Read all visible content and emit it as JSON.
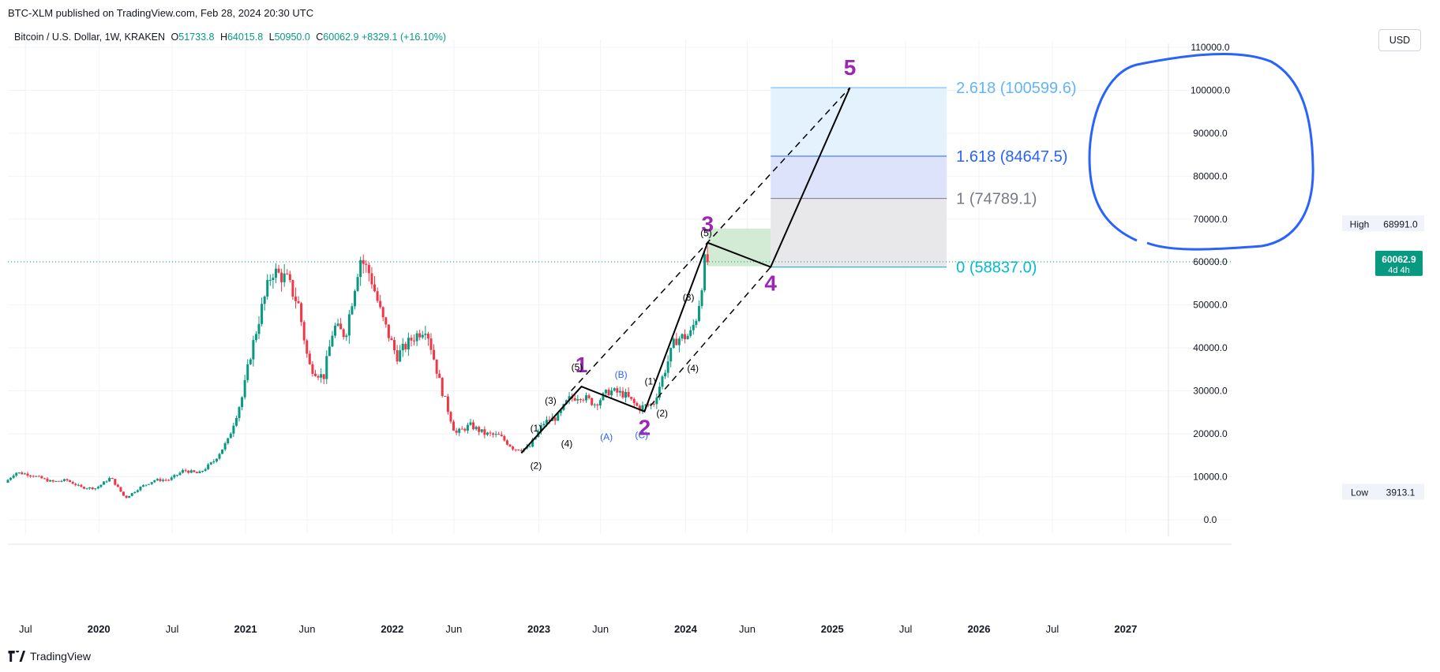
{
  "header": {
    "published": "BTC-XLM published on TradingView.com, Feb 28, 2024 20:30 UTC",
    "symbol": "Bitcoin / U.S. Dollar, 1W, KRAKEN",
    "o_label": "O",
    "o": "51733.8",
    "h_label": "H",
    "h": "64015.8",
    "l_label": "L",
    "l": "50950.0",
    "c_label": "C",
    "c": "60062.9",
    "change": "+8329.1 (+16.10%)",
    "currency": "USD"
  },
  "footer": {
    "brand": "TradingView"
  },
  "colors": {
    "up": "#089981",
    "down": "#f23645",
    "wave": "#9c27b0",
    "fib_2618": "#64b5f6",
    "fib_1618": "#2962ff",
    "fib_1": "#787b86",
    "fib_0": "#00bcd4",
    "circle": "#2962ff"
  },
  "chart_data": {
    "type": "candlestick",
    "symbol": "Bitcoin / U.S. Dollar",
    "interval": "1W",
    "exchange": "KRAKEN",
    "y_ticks": [
      "110000.0",
      "100000.0",
      "90000.0",
      "80000.0",
      "70000.0",
      "60000.0",
      "50000.0",
      "40000.0",
      "30000.0",
      "20000.0",
      "10000.0",
      "0.0"
    ],
    "y_tick_values": [
      110000,
      100000,
      90000,
      80000,
      70000,
      60000,
      50000,
      40000,
      30000,
      20000,
      10000,
      0
    ],
    "ylim": [
      -1500,
      110000
    ],
    "x_ticks": [
      {
        "label": "Jul",
        "t": 2019.5
      },
      {
        "label": "2020",
        "t": 2020.0
      },
      {
        "label": "Jul",
        "t": 2020.5
      },
      {
        "label": "2021",
        "t": 2021.0
      },
      {
        "label": "Jun",
        "t": 2021.42
      },
      {
        "label": "2022",
        "t": 2022.0
      },
      {
        "label": "Jun",
        "t": 2022.42
      },
      {
        "label": "2023",
        "t": 2023.0
      },
      {
        "label": "Jun",
        "t": 2023.42
      },
      {
        "label": "2024",
        "t": 2024.0
      },
      {
        "label": "Jun",
        "t": 2024.42
      },
      {
        "label": "2025",
        "t": 2025.0
      },
      {
        "label": "Jul",
        "t": 2025.5
      },
      {
        "label": "2026",
        "t": 2026.0
      },
      {
        "label": "Jul",
        "t": 2026.5
      },
      {
        "label": "2027",
        "t": 2027.0
      }
    ],
    "xlim": [
      2019.38,
      2027.2
    ],
    "price_path": [
      [
        2019.38,
        8600
      ],
      [
        2019.45,
        11000
      ],
      [
        2019.55,
        10500
      ],
      [
        2019.7,
        8800
      ],
      [
        2019.8,
        9200
      ],
      [
        2019.9,
        7500
      ],
      [
        2020.0,
        7300
      ],
      [
        2020.1,
        9800
      ],
      [
        2020.2,
        5000
      ],
      [
        2020.3,
        7500
      ],
      [
        2020.4,
        9200
      ],
      [
        2020.5,
        9300
      ],
      [
        2020.6,
        11500
      ],
      [
        2020.7,
        10700
      ],
      [
        2020.8,
        13500
      ],
      [
        2020.9,
        18500
      ],
      [
        2021.0,
        29000
      ],
      [
        2021.05,
        38000
      ],
      [
        2021.12,
        48000
      ],
      [
        2021.2,
        58000
      ],
      [
        2021.3,
        56000
      ],
      [
        2021.38,
        50000
      ],
      [
        2021.45,
        36000
      ],
      [
        2021.55,
        33000
      ],
      [
        2021.62,
        45000
      ],
      [
        2021.7,
        43000
      ],
      [
        2021.8,
        61000
      ],
      [
        2021.87,
        57000
      ],
      [
        2021.95,
        47000
      ],
      [
        2022.05,
        38000
      ],
      [
        2022.15,
        42000
      ],
      [
        2022.25,
        45000
      ],
      [
        2022.35,
        31000
      ],
      [
        2022.45,
        20000
      ],
      [
        2022.55,
        22000
      ],
      [
        2022.65,
        20000
      ],
      [
        2022.75,
        19500
      ],
      [
        2022.85,
        16500
      ],
      [
        2022.95,
        16600
      ],
      [
        2023.05,
        22500
      ],
      [
        2023.15,
        24000
      ],
      [
        2023.22,
        28000
      ],
      [
        2023.3,
        29000
      ],
      [
        2023.4,
        27000
      ],
      [
        2023.5,
        30000
      ],
      [
        2023.6,
        29200
      ],
      [
        2023.7,
        26000
      ],
      [
        2023.8,
        27000
      ],
      [
        2023.88,
        35000
      ],
      [
        2023.95,
        42000
      ],
      [
        2024.05,
        43000
      ],
      [
        2024.1,
        48000
      ],
      [
        2024.15,
        60062.9
      ]
    ],
    "current_price": {
      "value": 60062.9,
      "label": "60062.9",
      "sub": "4d 4h"
    },
    "high_marker": {
      "label": "High",
      "value": 68991.0,
      "text": "68991.0"
    },
    "low_marker": {
      "label": "Low",
      "value": 3913.1,
      "text": "3913.1"
    },
    "fib_levels": [
      {
        "ratio": "2.618",
        "value": 100599.6,
        "label": "2.618 (100599.6)"
      },
      {
        "ratio": "1.618",
        "value": 84647.5,
        "label": "1.618 (84647.5)"
      },
      {
        "ratio": "1",
        "value": 74789.1,
        "label": "1 (74789.1)"
      },
      {
        "ratio": "0",
        "value": 58837.0,
        "label": "0 (58837.0)"
      }
    ],
    "major_waves": [
      {
        "label": "1",
        "t": 2023.29,
        "y": 31000
      },
      {
        "label": "2",
        "t": 2023.72,
        "y": 25200
      },
      {
        "label": "3",
        "t": 2024.15,
        "y": 64500
      },
      {
        "label": "4",
        "t": 2024.58,
        "y": 58837
      },
      {
        "label": "5",
        "t": 2025.12,
        "y": 100599
      }
    ],
    "wave_start": {
      "t": 2022.88,
      "y": 15500
    },
    "sub_waves": [
      {
        "label": "(1)",
        "t": 2022.98,
        "y": 20500
      },
      {
        "label": "(2)",
        "t": 2022.98,
        "y": 11800
      },
      {
        "label": "(3)",
        "t": 2023.08,
        "y": 27000
      },
      {
        "label": "(4)",
        "t": 2023.19,
        "y": 17000
      },
      {
        "label": "(5)",
        "t": 2023.26,
        "y": 34800
      },
      {
        "label": "(A)",
        "t": 2023.46,
        "y": 18500
      },
      {
        "label": "(B)",
        "t": 2023.56,
        "y": 33000
      },
      {
        "label": "(C)",
        "t": 2023.7,
        "y": 19000
      },
      {
        "label": "(1)",
        "t": 2023.76,
        "y": 31500
      },
      {
        "label": "(2)",
        "t": 2023.84,
        "y": 24000
      },
      {
        "label": "(3)",
        "t": 2224.02,
        "y": 51000
      },
      {
        "label": "(4)",
        "t": 2024.05,
        "y": 34500
      },
      {
        "label": "(5)",
        "t": 2024.14,
        "y": 66000
      }
    ]
  }
}
